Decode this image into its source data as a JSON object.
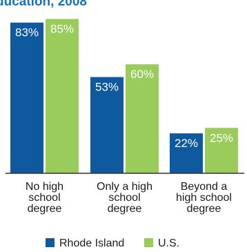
{
  "chart_data": {
    "type": "bar",
    "title": "ducation, 2008",
    "categories": [
      [
        "No high",
        "school",
        "degree"
      ],
      [
        "Only a high",
        "school",
        "degree"
      ],
      [
        "Beyond a",
        "high school",
        "degree"
      ]
    ],
    "series": [
      {
        "name": "Rhode Island",
        "values": [
          83,
          53,
          22
        ],
        "labels": [
          "83%",
          "53%",
          "22%"
        ],
        "color": "#0f5a9e"
      },
      {
        "name": "U.S.",
        "values": [
          85,
          60,
          25
        ],
        "labels": [
          "85%",
          "60%",
          "25%"
        ],
        "color": "#99cc5a"
      }
    ],
    "ylim": [
      0,
      100
    ],
    "xlabel": "",
    "ylabel": "",
    "grid": false,
    "legend": "bottom"
  },
  "colors": {
    "title": "#1a73b8",
    "axis": "#333333"
  }
}
